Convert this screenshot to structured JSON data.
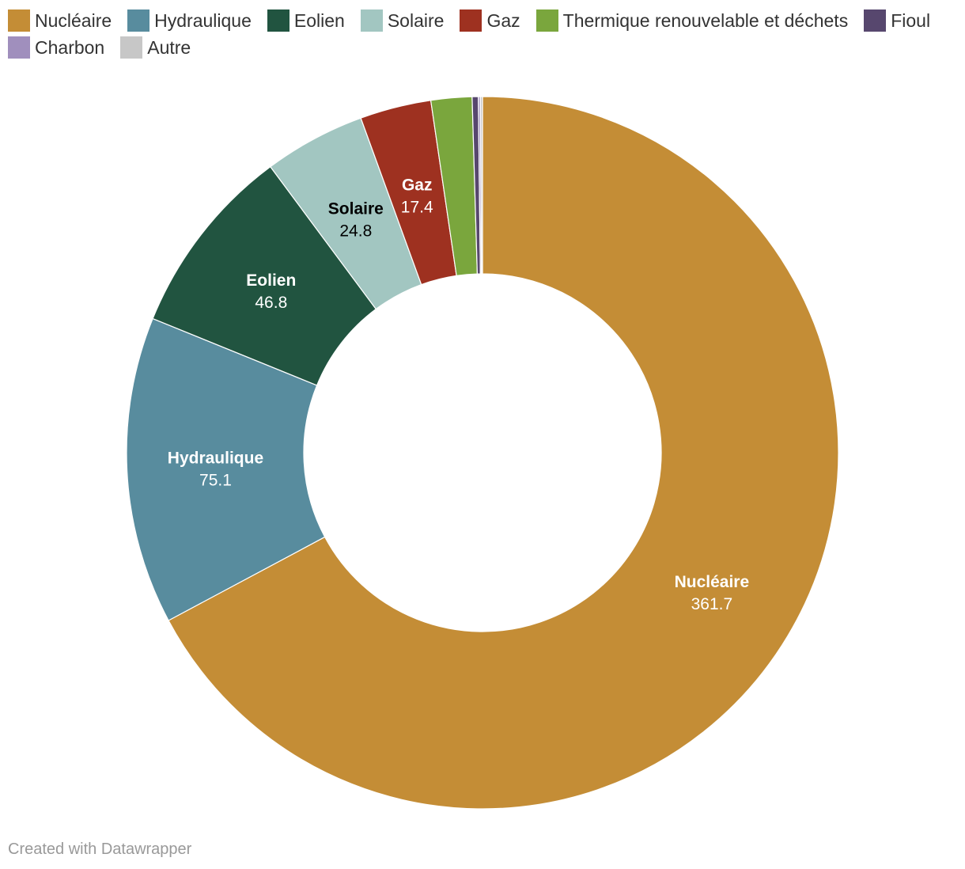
{
  "chart_data": {
    "type": "pie",
    "subtype": "donut",
    "legend_position": "top-left",
    "slices": [
      {
        "name": "Nucléaire",
        "value": 361.7,
        "color": "#c48d36",
        "label_color": "#ffffff",
        "labeled": true
      },
      {
        "name": "Hydraulique",
        "value": 75.1,
        "color": "#588c9e",
        "label_color": "#ffffff",
        "labeled": true
      },
      {
        "name": "Eolien",
        "value": 46.8,
        "color": "#215440",
        "label_color": "#ffffff",
        "labeled": true
      },
      {
        "name": "Solaire",
        "value": 24.8,
        "color": "#a2c6c1",
        "label_color": "#000000",
        "labeled": true
      },
      {
        "name": "Gaz",
        "value": 17.4,
        "color": "#9e3120",
        "label_color": "#ffffff",
        "labeled": true
      },
      {
        "name": "Thermique renouvelable et déchets",
        "value": 10.0,
        "color": "#7aa63d",
        "labeled": false
      },
      {
        "name": "Fioul",
        "value": 1.5,
        "color": "#57476e",
        "labeled": false
      },
      {
        "name": "Charbon",
        "value": 0.5,
        "color": "#a08fbd",
        "labeled": false
      },
      {
        "name": "Autre",
        "value": 0.5,
        "color": "#c7c7c7",
        "labeled": false
      }
    ]
  },
  "footer": {
    "credit": "Created with Datawrapper"
  }
}
